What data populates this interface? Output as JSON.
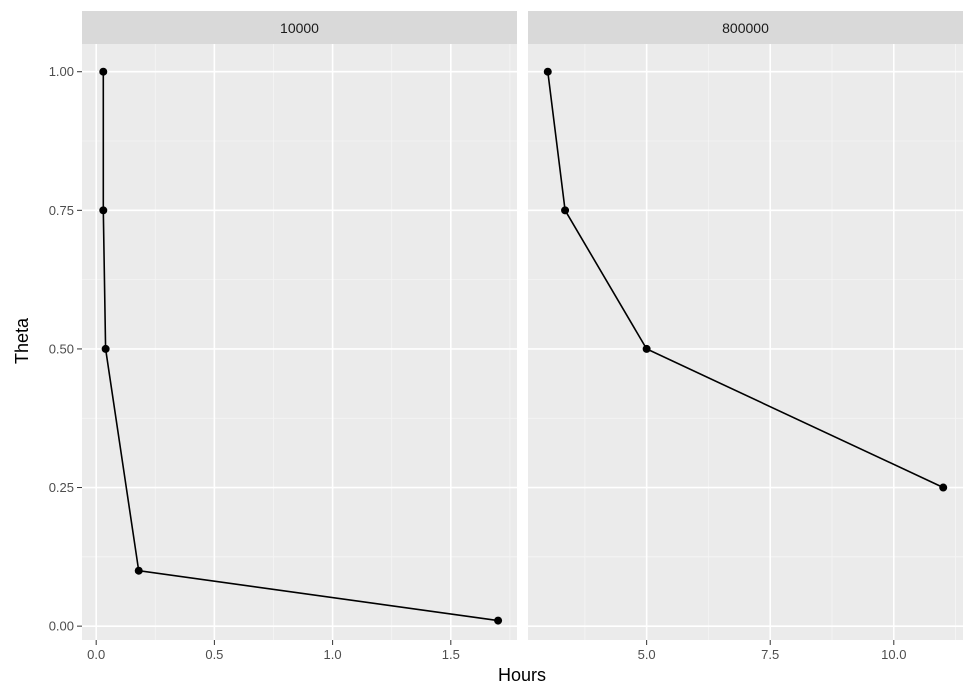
{
  "chart_data": {
    "type": "line",
    "xlabel": "Hours",
    "ylabel": "Theta",
    "ylim": [
      -0.025,
      1.05
    ],
    "y_ticks": [
      0.0,
      0.25,
      0.5,
      0.75,
      1.0
    ],
    "y_tick_labels": [
      "0.00",
      "0.25",
      "0.50",
      "0.75",
      "1.00"
    ],
    "grid": true,
    "panels": [
      {
        "strip_label": "10000",
        "xlim": [
          -0.06,
          1.78
        ],
        "x_ticks": [
          0.0,
          0.5,
          1.0,
          1.5
        ],
        "x_tick_labels": [
          "0.0",
          "0.5",
          "1.0",
          "1.5"
        ],
        "points": [
          {
            "x": 0.03,
            "y": 1.0
          },
          {
            "x": 0.03,
            "y": 0.75
          },
          {
            "x": 0.04,
            "y": 0.5
          },
          {
            "x": 0.18,
            "y": 0.1
          },
          {
            "x": 1.7,
            "y": 0.01
          }
        ]
      },
      {
        "strip_label": "800000",
        "xlim": [
          2.6,
          11.4
        ],
        "x_ticks": [
          5.0,
          7.5,
          10.0
        ],
        "x_tick_labels": [
          "5.0",
          "7.5",
          "10.0"
        ],
        "points": [
          {
            "x": 3.0,
            "y": 1.0
          },
          {
            "x": 3.35,
            "y": 0.75
          },
          {
            "x": 5.0,
            "y": 0.5
          },
          {
            "x": 11.0,
            "y": 0.25
          }
        ]
      }
    ]
  }
}
